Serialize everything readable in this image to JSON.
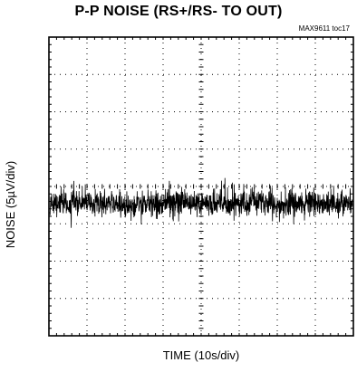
{
  "chart_data": {
    "type": "line",
    "title": "P-P NOISE (RS+/RS- TO OUT)",
    "reference": "MAX9611 toc17",
    "xlabel": "TIME (10s/div)",
    "ylabel": "NOISE (5µV/div)",
    "divisions": {
      "x": 8,
      "y": 8
    },
    "grid": "dotted",
    "series": [
      {
        "center_div": 4.45,
        "band_core_half_div": 0.45,
        "band_peak_half_div": 0.9,
        "trace_color": "#000000"
      }
    ]
  }
}
